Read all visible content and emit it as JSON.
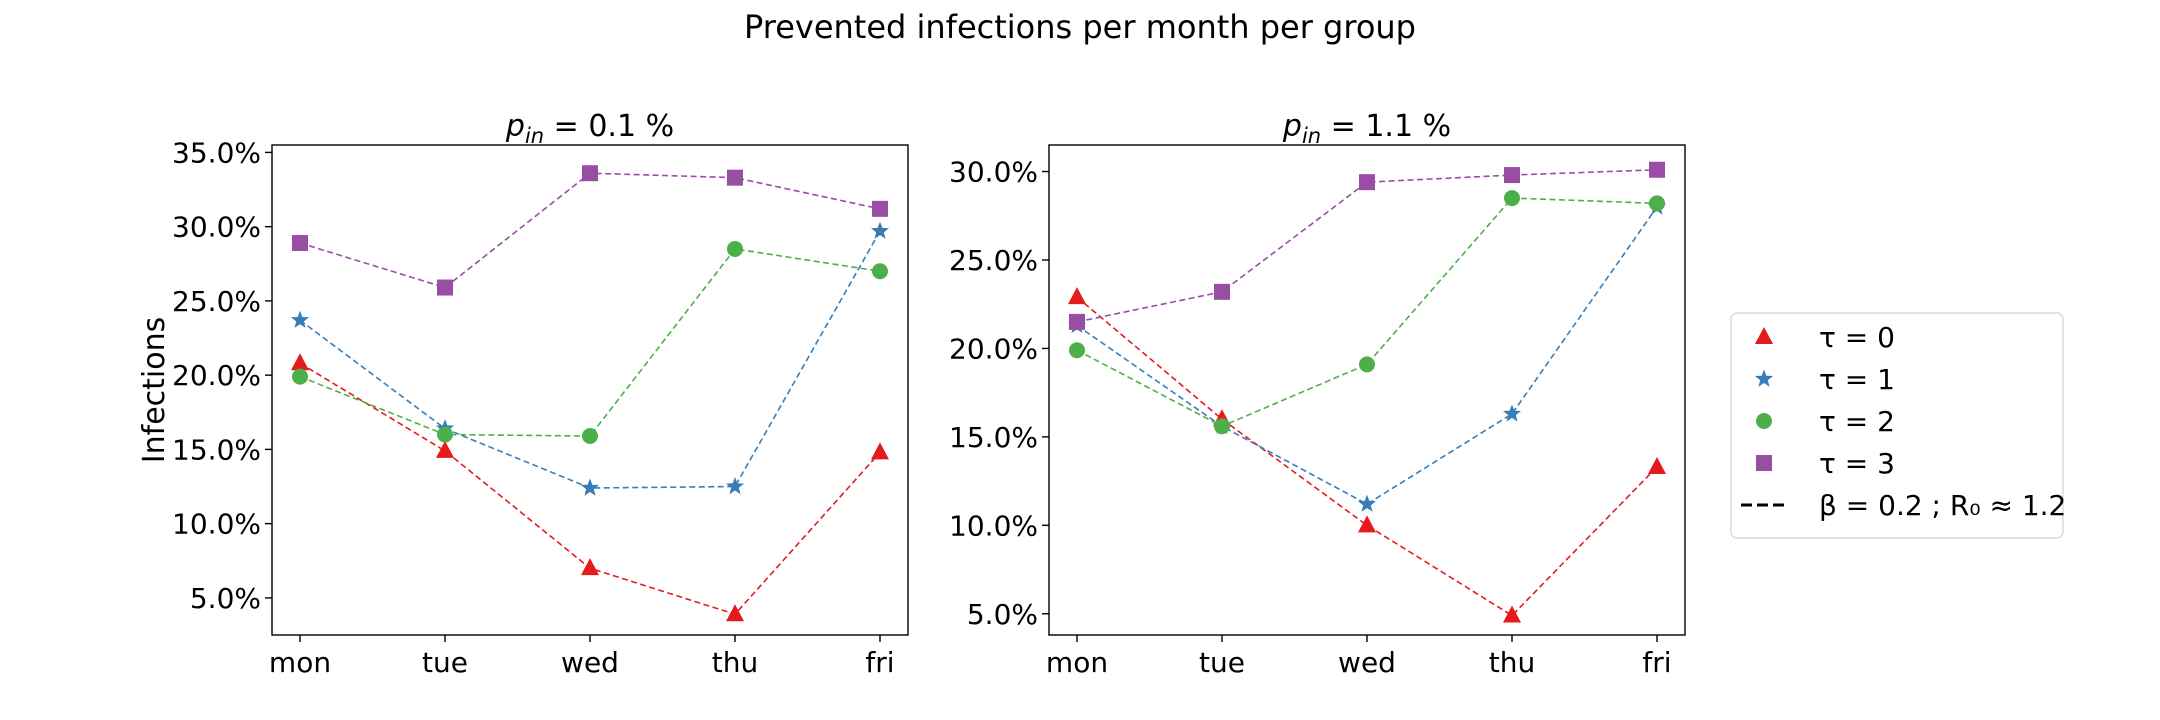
{
  "figure": {
    "suptitle": "Prevented infections per month per group"
  },
  "colors": {
    "tau0": "#e41a1c",
    "tau1": "#377eb8",
    "tau2": "#4daf4a",
    "tau3": "#984ea3"
  },
  "legend": {
    "placement": "center-right outside",
    "entries": [
      {
        "label": "τ = 0",
        "marker": "triangle",
        "color": "#e41a1c"
      },
      {
        "label": "τ = 1",
        "marker": "star",
        "color": "#377eb8"
      },
      {
        "label": "τ = 2",
        "marker": "circle",
        "color": "#4daf4a"
      },
      {
        "label": "τ = 3",
        "marker": "square",
        "color": "#984ea3"
      },
      {
        "label": "β = 0.2 ; R₀ ≈ 1.2",
        "marker": "dashed-line",
        "color": "#000000"
      }
    ]
  },
  "chart_data": [
    {
      "type": "line",
      "title": "p_in = 0.1 %",
      "title_var": "p",
      "title_sub": "in",
      "title_rest": " = 0.1 %",
      "xlabel": "",
      "ylabel": "Infections",
      "categories": [
        "mon",
        "tue",
        "wed",
        "thu",
        "fri"
      ],
      "ylim": [
        0.025,
        0.355
      ],
      "yticks": [
        0.05,
        0.1,
        0.15,
        0.2,
        0.25,
        0.3,
        0.35
      ],
      "ytick_labels": [
        "5.0%",
        "10.0%",
        "15.0%",
        "20.0%",
        "25.0%",
        "30.0%",
        "35.0%"
      ],
      "grid": false,
      "line_style": "dashed",
      "series": [
        {
          "name": "τ = 0",
          "marker": "triangle",
          "color": "#e41a1c",
          "values": [
            0.208,
            0.149,
            0.07,
            0.039,
            0.148
          ]
        },
        {
          "name": "τ = 1",
          "marker": "star",
          "color": "#377eb8",
          "values": [
            0.237,
            0.164,
            0.124,
            0.125,
            0.297
          ]
        },
        {
          "name": "τ = 2",
          "marker": "circle",
          "color": "#4daf4a",
          "values": [
            0.199,
            0.16,
            0.159,
            0.285,
            0.27
          ]
        },
        {
          "name": "τ = 3",
          "marker": "square",
          "color": "#984ea3",
          "values": [
            0.289,
            0.259,
            0.336,
            0.333,
            0.312
          ]
        }
      ]
    },
    {
      "type": "line",
      "title": "p_in = 1.1 %",
      "title_var": "p",
      "title_sub": "in",
      "title_rest": " = 1.1 %",
      "xlabel": "",
      "ylabel": "",
      "categories": [
        "mon",
        "tue",
        "wed",
        "thu",
        "fri"
      ],
      "ylim": [
        0.038,
        0.315
      ],
      "yticks": [
        0.05,
        0.1,
        0.15,
        0.2,
        0.25,
        0.3
      ],
      "ytick_labels": [
        "5.0%",
        "10.0%",
        "15.0%",
        "20.0%",
        "25.0%",
        "30.0%"
      ],
      "grid": false,
      "line_style": "dashed",
      "series": [
        {
          "name": "τ = 0",
          "marker": "triangle",
          "color": "#e41a1c",
          "values": [
            0.229,
            0.16,
            0.1,
            0.049,
            0.133
          ]
        },
        {
          "name": "τ = 1",
          "marker": "star",
          "color": "#377eb8",
          "values": [
            0.213,
            0.156,
            0.112,
            0.163,
            0.28
          ]
        },
        {
          "name": "τ = 2",
          "marker": "circle",
          "color": "#4daf4a",
          "values": [
            0.199,
            0.156,
            0.191,
            0.285,
            0.282
          ]
        },
        {
          "name": "τ = 3",
          "marker": "square",
          "color": "#984ea3",
          "values": [
            0.215,
            0.232,
            0.294,
            0.298,
            0.301
          ]
        }
      ]
    }
  ]
}
